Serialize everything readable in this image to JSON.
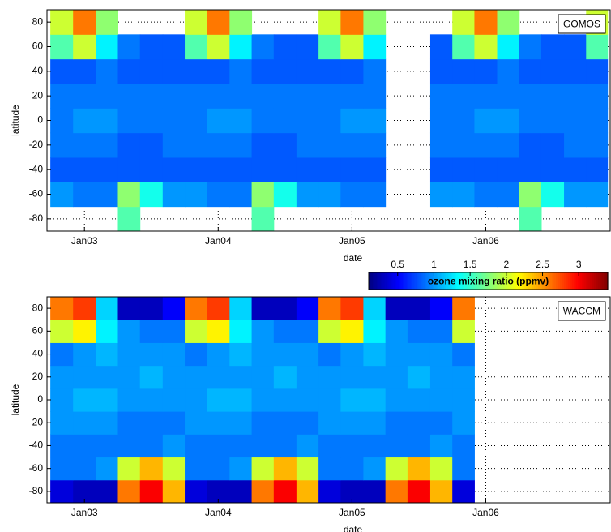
{
  "chart_data": [
    {
      "type": "heatmap",
      "label": "GOMOS",
      "legend_loc": "upper right",
      "xlabel": "date",
      "ylabel": "latitude",
      "colormap": "jet",
      "grid": true,
      "xlim": [
        2002.72,
        2006.93
      ],
      "xticks": [
        {
          "value": 2003,
          "label": "Jan03"
        },
        {
          "value": 2004,
          "label": "Jan04"
        },
        {
          "value": 2005,
          "label": "Jan05"
        },
        {
          "value": 2006,
          "label": "Jan06"
        }
      ],
      "ylim": [
        -90,
        90
      ],
      "yticks": [
        -80,
        -60,
        -40,
        -20,
        0,
        20,
        40,
        60,
        80
      ],
      "x": [
        2002.83,
        2003,
        2003.17,
        2003.33,
        2003.5,
        2003.67,
        2003.83,
        2004,
        2004.17,
        2004.33,
        2004.5,
        2004.67,
        2004.83,
        2005,
        2005.17,
        2005.33,
        2005.5,
        2005.67,
        2005.83,
        2006,
        2006.17,
        2006.33,
        2006.5,
        2006.67,
        2006.83
      ],
      "y": [
        -80,
        -60,
        -40,
        -20,
        0,
        20,
        40,
        60,
        80
      ],
      "z": [
        [
          null,
          null,
          null,
          1.6,
          null,
          null,
          null,
          null,
          null,
          1.6,
          null,
          null,
          null,
          null,
          null,
          null,
          null,
          null,
          null,
          null,
          null,
          1.6,
          null,
          null,
          null
        ],
        [
          1.0,
          0.9,
          0.9,
          1.8,
          1.4,
          1.0,
          1.0,
          0.9,
          0.9,
          1.8,
          1.4,
          1.0,
          1.0,
          0.9,
          0.9,
          null,
          null,
          1.0,
          1.0,
          0.9,
          0.9,
          1.8,
          1.4,
          1.0,
          1.0
        ],
        [
          0.8,
          0.8,
          0.8,
          0.8,
          0.8,
          0.8,
          0.8,
          0.8,
          0.8,
          0.8,
          0.8,
          0.8,
          0.8,
          0.8,
          0.8,
          null,
          null,
          0.8,
          0.8,
          0.8,
          0.8,
          0.8,
          0.8,
          0.8,
          0.8
        ],
        [
          0.9,
          0.9,
          0.9,
          0.8,
          0.8,
          0.9,
          0.9,
          0.9,
          0.9,
          0.8,
          0.8,
          0.9,
          0.9,
          0.9,
          0.9,
          null,
          null,
          0.9,
          0.9,
          0.9,
          0.9,
          0.8,
          0.8,
          0.9,
          0.9
        ],
        [
          0.9,
          1.0,
          1.0,
          0.9,
          0.9,
          0.9,
          0.9,
          1.0,
          1.0,
          0.9,
          0.9,
          0.9,
          0.9,
          1.0,
          1.0,
          null,
          null,
          0.9,
          0.9,
          1.0,
          1.0,
          0.9,
          0.9,
          0.9,
          0.9
        ],
        [
          0.9,
          0.9,
          0.9,
          0.9,
          0.9,
          0.9,
          0.9,
          0.9,
          0.9,
          0.9,
          0.9,
          0.9,
          0.9,
          0.9,
          0.9,
          null,
          null,
          0.9,
          0.9,
          0.9,
          0.9,
          0.9,
          0.9,
          0.9,
          0.9
        ],
        [
          0.8,
          0.8,
          0.9,
          0.8,
          0.8,
          0.8,
          0.8,
          0.8,
          0.9,
          0.8,
          0.8,
          0.8,
          0.8,
          0.8,
          0.9,
          null,
          null,
          0.8,
          0.8,
          0.8,
          0.9,
          0.8,
          0.8,
          0.8,
          0.8
        ],
        [
          1.6,
          2.0,
          1.3,
          0.9,
          0.8,
          0.8,
          1.6,
          2.0,
          1.3,
          0.9,
          0.8,
          0.8,
          1.6,
          2.0,
          1.3,
          null,
          null,
          0.8,
          1.6,
          2.0,
          1.3,
          0.9,
          0.8,
          0.8,
          1.6
        ],
        [
          2.0,
          2.6,
          1.8,
          null,
          null,
          null,
          2.0,
          2.6,
          1.8,
          null,
          null,
          null,
          2.0,
          2.6,
          1.8,
          null,
          null,
          null,
          2.0,
          2.6,
          1.8,
          null,
          null,
          null,
          2.0
        ]
      ],
      "colorbar": {
        "label": "ozone mixing ratio (ppmv)",
        "lim": [
          0.1,
          3.4
        ],
        "ticks": [
          0.5,
          1,
          1.5,
          2,
          2.5,
          3
        ]
      }
    },
    {
      "type": "heatmap",
      "label": "WACCM",
      "legend_loc": "upper right",
      "xlabel": "date",
      "ylabel": "latitude",
      "colormap": "jet",
      "grid": true,
      "xlim": [
        2002.72,
        2006.93
      ],
      "xticks": [
        {
          "value": 2003,
          "label": "Jan03"
        },
        {
          "value": 2004,
          "label": "Jan04"
        },
        {
          "value": 2005,
          "label": "Jan05"
        },
        {
          "value": 2006,
          "label": "Jan06"
        }
      ],
      "ylim": [
        -90,
        90
      ],
      "yticks": [
        -80,
        -60,
        -40,
        -20,
        0,
        20,
        40,
        60,
        80
      ],
      "x": [
        2002.83,
        2003,
        2003.17,
        2003.33,
        2003.5,
        2003.67,
        2003.83,
        2004,
        2004.17,
        2004.33,
        2004.5,
        2004.67,
        2004.83,
        2005,
        2005.17,
        2005.33,
        2005.5,
        2005.67,
        2005.83,
        2006,
        2006.17,
        2006.33,
        2006.5,
        2006.67,
        2006.83
      ],
      "y": [
        -80,
        -60,
        -40,
        -20,
        0,
        20,
        40,
        60,
        80
      ],
      "z": [
        [
          0.4,
          0.3,
          0.3,
          2.6,
          3.0,
          2.4,
          0.4,
          0.3,
          0.3,
          2.6,
          3.0,
          2.4,
          0.4,
          0.3,
          0.3,
          2.6,
          3.0,
          2.4,
          0.4,
          null,
          null,
          null,
          null,
          null,
          null
        ],
        [
          0.9,
          0.9,
          1.0,
          2.0,
          2.4,
          2.0,
          0.9,
          0.9,
          1.0,
          2.0,
          2.4,
          2.0,
          0.9,
          0.9,
          1.0,
          2.0,
          2.4,
          2.0,
          0.9,
          null,
          null,
          null,
          null,
          null,
          null
        ],
        [
          0.9,
          0.9,
          0.9,
          0.9,
          0.9,
          1.0,
          0.9,
          0.9,
          0.9,
          0.9,
          0.9,
          1.0,
          0.9,
          0.9,
          0.9,
          0.9,
          0.9,
          1.0,
          0.9,
          null,
          null,
          null,
          null,
          null,
          null
        ],
        [
          1.0,
          1.0,
          1.0,
          0.9,
          0.9,
          0.9,
          1.0,
          1.0,
          1.0,
          0.9,
          0.9,
          0.9,
          1.0,
          1.0,
          1.0,
          0.9,
          0.9,
          0.9,
          1.0,
          null,
          null,
          null,
          null,
          null,
          null
        ],
        [
          1.0,
          1.1,
          1.1,
          1.0,
          1.0,
          1.0,
          1.0,
          1.1,
          1.1,
          1.0,
          1.0,
          1.0,
          1.0,
          1.1,
          1.1,
          1.0,
          1.0,
          1.0,
          1.0,
          null,
          null,
          null,
          null,
          null,
          null
        ],
        [
          1.0,
          1.0,
          1.0,
          1.0,
          1.1,
          1.0,
          1.0,
          1.0,
          1.0,
          1.0,
          1.1,
          1.0,
          1.0,
          1.0,
          1.0,
          1.0,
          1.1,
          1.0,
          1.0,
          null,
          null,
          null,
          null,
          null,
          null
        ],
        [
          0.9,
          1.0,
          1.1,
          1.0,
          1.0,
          1.0,
          0.9,
          1.0,
          1.1,
          1.0,
          1.0,
          1.0,
          0.9,
          1.0,
          1.1,
          1.0,
          1.0,
          1.0,
          0.9,
          null,
          null,
          null,
          null,
          null,
          null
        ],
        [
          2.0,
          2.2,
          1.3,
          1.0,
          0.9,
          0.9,
          2.0,
          2.2,
          1.3,
          1.0,
          0.9,
          0.9,
          2.0,
          2.2,
          1.3,
          1.0,
          0.9,
          0.9,
          2.0,
          null,
          null,
          null,
          null,
          null,
          null
        ],
        [
          2.6,
          2.8,
          1.2,
          0.3,
          0.3,
          0.5,
          2.6,
          2.8,
          1.2,
          0.3,
          0.3,
          0.5,
          2.6,
          2.8,
          1.2,
          0.3,
          0.3,
          0.5,
          2.6,
          null,
          null,
          null,
          null,
          null,
          null
        ]
      ]
    }
  ]
}
